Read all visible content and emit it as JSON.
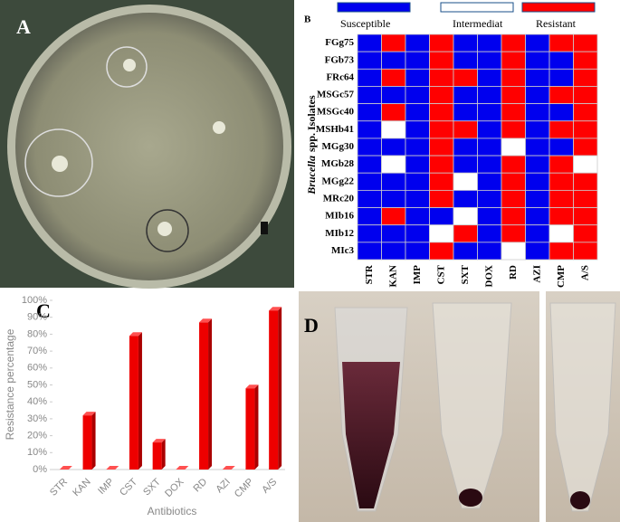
{
  "photos": [
    {
      "label": "A"
    },
    {
      "label": "D"
    }
  ],
  "chart_data": [
    {
      "type": "heatmap",
      "label": "B",
      "ylabel_italic": "Brucella",
      "ylabel": "spp. Isolates",
      "levels": [
        {
          "name": "Susceptible",
          "color": "#0000ee"
        },
        {
          "name": "Intermediat",
          "color": "#ffffff"
        },
        {
          "name": "Resistant",
          "color": "#ff0000"
        }
      ],
      "rows": [
        "FGg75",
        "FGb73",
        "FRc64",
        "MSGc57",
        "MSGc40",
        "MSHb41",
        "MGg30",
        "MGb28",
        "MGg22",
        "MRc20",
        "MIb16",
        "MIb12",
        "MIc3"
      ],
      "columns": [
        "STR",
        "KAN",
        "IMP",
        "CST",
        "SXT",
        "DOX",
        "RD",
        "AZI",
        "CMP",
        "A/S"
      ],
      "values": [
        [
          0,
          2,
          0,
          2,
          0,
          0,
          2,
          0,
          2,
          2
        ],
        [
          0,
          0,
          0,
          2,
          0,
          0,
          2,
          0,
          0,
          2
        ],
        [
          0,
          2,
          0,
          2,
          2,
          0,
          2,
          0,
          0,
          2
        ],
        [
          0,
          0,
          0,
          2,
          0,
          0,
          2,
          0,
          2,
          2
        ],
        [
          0,
          2,
          0,
          2,
          0,
          0,
          2,
          0,
          0,
          2
        ],
        [
          0,
          1,
          0,
          2,
          2,
          0,
          2,
          0,
          2,
          2
        ],
        [
          0,
          0,
          0,
          2,
          0,
          0,
          1,
          0,
          0,
          2
        ],
        [
          0,
          1,
          0,
          2,
          0,
          0,
          2,
          0,
          2,
          1
        ],
        [
          0,
          0,
          0,
          2,
          1,
          0,
          2,
          0,
          2,
          2
        ],
        [
          0,
          0,
          0,
          2,
          0,
          0,
          2,
          0,
          2,
          2
        ],
        [
          0,
          2,
          0,
          0,
          1,
          0,
          2,
          0,
          2,
          2
        ],
        [
          0,
          0,
          0,
          1,
          2,
          0,
          2,
          0,
          1,
          2
        ],
        [
          0,
          0,
          0,
          2,
          0,
          0,
          1,
          0,
          2,
          2
        ]
      ]
    },
    {
      "type": "bar",
      "label": "C",
      "ylabel": "Resistance percentage",
      "xlabel": "Antibiotics",
      "categories": [
        "STR",
        "KAN",
        "IMP",
        "CST",
        "SXT",
        "DOX",
        "RD",
        "AZI",
        "CMP",
        "A/S"
      ],
      "values": [
        0,
        32,
        0,
        79,
        16,
        0,
        87,
        0,
        48,
        94
      ],
      "color": "#ee0000",
      "ylim": [
        0,
        100
      ],
      "yticks": [
        {
          "value": 0,
          "label": "0%"
        },
        {
          "value": 10,
          "label": "10%"
        },
        {
          "value": 20,
          "label": "20%"
        },
        {
          "value": 30,
          "label": "30%"
        },
        {
          "value": 40,
          "label": "40%"
        },
        {
          "value": 50,
          "label": "50%"
        },
        {
          "value": 60,
          "label": "60%"
        },
        {
          "value": 70,
          "label": "70%"
        },
        {
          "value": 80,
          "label": "80%"
        },
        {
          "value": 90,
          "label": "90%"
        },
        {
          "value": 100,
          "label": "100%"
        }
      ],
      "grid": false
    }
  ]
}
